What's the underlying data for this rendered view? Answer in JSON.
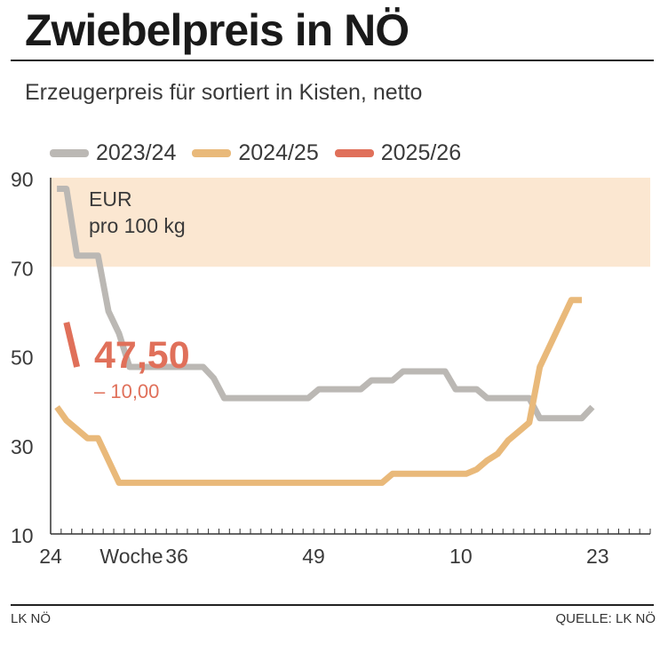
{
  "title": "Zwiebelpreis in NÖ",
  "subtitle": "Erzeugerpreis für sortiert in Kisten, netto",
  "footer": {
    "left": "LK NÖ",
    "right": "QUELLE: LK NÖ"
  },
  "colors": {
    "s2023": "#bbb8b4",
    "s2024": "#e9b97a",
    "s2025": "#e0705a",
    "band": "#fbe7d1",
    "axis": "#333333",
    "text": "#3a3a3a"
  },
  "chart_data": {
    "type": "line",
    "unit_label": [
      "EUR",
      "pro 100 kg"
    ],
    "xlabel": "Woche",
    "xlim": [
      0,
      57
    ],
    "ylim": [
      10,
      90
    ],
    "yticks": [
      10,
      30,
      50,
      70,
      90
    ],
    "band": [
      70,
      90
    ],
    "xticks": [
      {
        "label": "24",
        "x": 0
      },
      {
        "label": "36",
        "x": 12
      },
      {
        "label": "49",
        "x": 25
      },
      {
        "label": "10",
        "x": 39
      },
      {
        "label": "23",
        "x": 52
      }
    ],
    "legend": "top-left",
    "highlight": {
      "value": "47,50",
      "change": "– 10,00"
    },
    "series": [
      {
        "name": "2023/24",
        "points": [
          [
            0.6,
            87.5
          ],
          [
            1.5,
            87.5
          ],
          [
            2.5,
            72.5
          ],
          [
            4.5,
            72.5
          ],
          [
            5.5,
            60
          ],
          [
            6.5,
            55
          ],
          [
            7.5,
            47.5
          ],
          [
            14.5,
            47.5
          ],
          [
            15.5,
            45
          ],
          [
            16.5,
            40.5
          ],
          [
            24.5,
            40.5
          ],
          [
            25.5,
            42.5
          ],
          [
            29.5,
            42.5
          ],
          [
            30.5,
            44.5
          ],
          [
            32.5,
            44.5
          ],
          [
            33.5,
            46.5
          ],
          [
            37.5,
            46.5
          ],
          [
            38.5,
            42.5
          ],
          [
            40.5,
            42.5
          ],
          [
            41.5,
            40.5
          ],
          [
            45.5,
            40.5
          ],
          [
            46.5,
            36
          ],
          [
            50.5,
            36
          ],
          [
            51.5,
            38.5
          ]
        ]
      },
      {
        "name": "2024/25",
        "points": [
          [
            0.6,
            38.5
          ],
          [
            1.5,
            35.5
          ],
          [
            2.5,
            33.5
          ],
          [
            3.5,
            31.5
          ],
          [
            4.5,
            31.5
          ],
          [
            6.5,
            21.5
          ],
          [
            31.5,
            21.5
          ],
          [
            32.5,
            23.5
          ],
          [
            39.5,
            23.5
          ],
          [
            40.5,
            24.5
          ],
          [
            41.5,
            26.5
          ],
          [
            42.5,
            28
          ],
          [
            43.5,
            31
          ],
          [
            44.5,
            33
          ],
          [
            45.5,
            35
          ],
          [
            46.5,
            47.5
          ],
          [
            47.5,
            52.5
          ],
          [
            48.5,
            57.5
          ],
          [
            49.5,
            62.5
          ],
          [
            50.5,
            62.5
          ]
        ]
      },
      {
        "name": "2025/26",
        "points": [
          [
            1.5,
            57.5
          ],
          [
            2.5,
            47.5
          ]
        ]
      }
    ]
  }
}
